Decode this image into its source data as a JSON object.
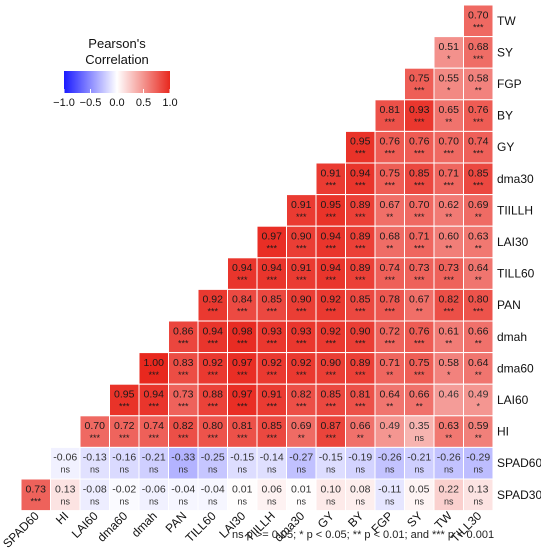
{
  "chart_data": {
    "type": "heatmap",
    "variables": [
      "SPAD60",
      "HI",
      "LAI60",
      "dma60",
      "dmah",
      "PAN",
      "TILL60",
      "LAI30",
      "TIILLH",
      "dma30",
      "GY",
      "BY",
      "FGP",
      "SY",
      "TW",
      "TILL30"
    ],
    "row_labels": [
      "TW",
      "SY",
      "FGP",
      "BY",
      "GY",
      "dma30",
      "TIILLH",
      "LAI30",
      "TILL60",
      "PAN",
      "dmah",
      "dma60",
      "LAI60",
      "HI",
      "SPAD60",
      "SPAD30"
    ],
    "rows": [
      {
        "label": "TW",
        "r": [
          0.7
        ],
        "sig": [
          "***"
        ]
      },
      {
        "label": "SY",
        "r": [
          0.51,
          0.68
        ],
        "sig": [
          "*",
          "***"
        ]
      },
      {
        "label": "FGP",
        "r": [
          0.75,
          0.55,
          0.58
        ],
        "sig": [
          "***",
          "*",
          "**"
        ]
      },
      {
        "label": "BY",
        "r": [
          0.81,
          0.93,
          0.65,
          0.76
        ],
        "sig": [
          "***",
          "***",
          "**",
          "***"
        ]
      },
      {
        "label": "GY",
        "r": [
          0.95,
          0.76,
          0.76,
          0.7,
          0.74
        ],
        "sig": [
          "***",
          "***",
          "***",
          "***",
          "***"
        ]
      },
      {
        "label": "dma30",
        "r": [
          0.91,
          0.94,
          0.75,
          0.85,
          0.71,
          0.85
        ],
        "sig": [
          "***",
          "***",
          "***",
          "***",
          "***",
          "***"
        ]
      },
      {
        "label": "TIILLH",
        "r": [
          0.91,
          0.95,
          0.89,
          0.67,
          0.7,
          0.62,
          0.69
        ],
        "sig": [
          "***",
          "***",
          "***",
          "**",
          "***",
          "**",
          "**"
        ]
      },
      {
        "label": "LAI30",
        "r": [
          0.97,
          0.9,
          0.94,
          0.89,
          0.68,
          0.71,
          0.6,
          0.63
        ],
        "sig": [
          "***",
          "***",
          "***",
          "***",
          "**",
          "***",
          "**",
          "**"
        ]
      },
      {
        "label": "TILL60",
        "r": [
          0.94,
          0.94,
          0.91,
          0.94,
          0.89,
          0.74,
          0.73,
          0.73,
          0.64
        ],
        "sig": [
          "***",
          "***",
          "***",
          "***",
          "***",
          "***",
          "***",
          "***",
          "**"
        ]
      },
      {
        "label": "PAN",
        "r": [
          0.92,
          0.84,
          0.85,
          0.9,
          0.92,
          0.85,
          0.78,
          0.67,
          0.82,
          0.8
        ],
        "sig": [
          "***",
          "***",
          "***",
          "***",
          "***",
          "***",
          "***",
          "**",
          "***",
          "***"
        ]
      },
      {
        "label": "dmah",
        "r": [
          0.86,
          0.94,
          0.98,
          0.93,
          0.93,
          0.92,
          0.9,
          0.72,
          0.76,
          0.61,
          0.66
        ],
        "sig": [
          "***",
          "***",
          "***",
          "***",
          "***",
          "***",
          "***",
          "***",
          "***",
          "**",
          "**"
        ]
      },
      {
        "label": "dma60",
        "r": [
          1.0,
          0.83,
          0.92,
          0.97,
          0.92,
          0.92,
          0.9,
          0.89,
          0.71,
          0.75,
          0.58,
          0.64
        ],
        "sig": [
          "***",
          "***",
          "***",
          "***",
          "***",
          "***",
          "***",
          "***",
          "**",
          "***",
          "*",
          "**"
        ]
      },
      {
        "label": "LAI60",
        "r": [
          0.95,
          0.94,
          0.73,
          0.88,
          0.97,
          0.91,
          0.82,
          0.85,
          0.81,
          0.64,
          0.66,
          0.46,
          0.49
        ],
        "sig": [
          "***",
          "***",
          "***",
          "***",
          "***",
          "***",
          "***",
          "***",
          "***",
          "**",
          "**",
          "",
          "*"
        ]
      },
      {
        "label": "HI",
        "r": [
          0.7,
          0.72,
          0.74,
          0.82,
          0.8,
          0.81,
          0.85,
          0.69,
          0.87,
          0.66,
          0.49,
          0.35,
          0.63,
          0.59
        ],
        "sig": [
          "***",
          "***",
          "***",
          "***",
          "***",
          "***",
          "***",
          "**",
          "***",
          "**",
          "*",
          "ns",
          "**",
          "**"
        ]
      },
      {
        "label": "SPAD60",
        "r": [
          -0.06,
          -0.13,
          -0.16,
          -0.21,
          -0.33,
          -0.25,
          -0.15,
          -0.14,
          -0.27,
          -0.15,
          -0.19,
          -0.26,
          -0.21,
          -0.26,
          -0.29
        ],
        "sig": [
          "ns",
          "ns",
          "ns",
          "ns",
          "ns",
          "ns",
          "ns",
          "ns",
          "ns",
          "ns",
          "ns",
          "ns",
          "ns",
          "ns",
          "ns"
        ]
      },
      {
        "label": "SPAD30",
        "r": [
          0.73,
          0.13,
          -0.08,
          -0.02,
          -0.06,
          -0.04,
          -0.04,
          0.01,
          0.06,
          0.01,
          0.1,
          0.08,
          -0.11,
          0.05,
          0.22,
          0.13
        ],
        "sig": [
          "***",
          "ns",
          "ns",
          "ns",
          "ns",
          "ns",
          "ns",
          "ns",
          "ns",
          "ns",
          "ns",
          "ns",
          "ns",
          "ns",
          "ns",
          "ns"
        ]
      }
    ],
    "legend": {
      "title": [
        "Pearson's",
        "Correlation"
      ],
      "ticks": [
        "−1.0",
        "−0.5",
        "0.0",
        "0.5",
        "1.0"
      ],
      "range": [
        -1,
        1
      ],
      "colors": {
        "low": "#1a1aff",
        "mid": "#ffffff",
        "high": "#e8281e"
      }
    },
    "footnote": "ns p >= 0.05; * p < 0.05; ** p < 0.01; and *** p < 0.001"
  }
}
